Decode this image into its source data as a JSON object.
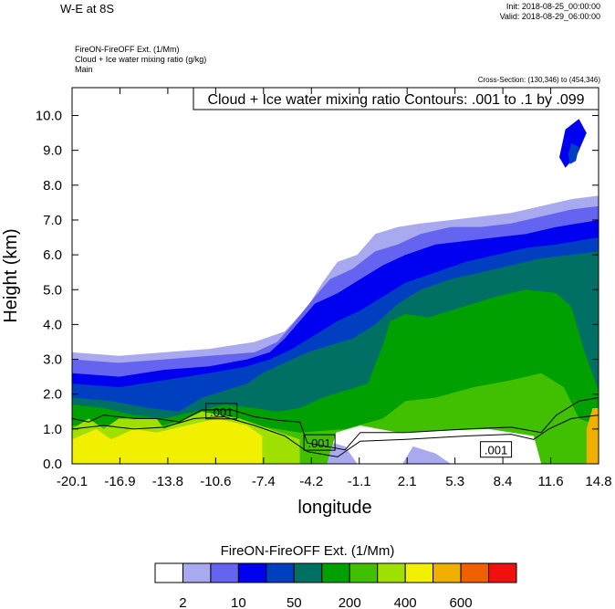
{
  "header": {
    "title": "W-E at 8S",
    "init": "Init: 2018-08-25_00:00:00",
    "valid": "Valid: 2018-08-29_06:00:00",
    "subtitle1": "FireON-FireOFF Ext.   (1/Mm)",
    "subtitle2": "Cloud + Ice water mixing ratio   (g/kg)",
    "subtitle3": "Main",
    "cross_section": "Cross-Section: (130,346) to (454,346)"
  },
  "colors": {
    "levels": [
      "#ffffff",
      "#a9a9f0",
      "#6464f0",
      "#0000f0",
      "#0040c0",
      "#007064",
      "#00a000",
      "#40c000",
      "#a0e000",
      "#f0f000",
      "#f0b000",
      "#f06000",
      "#f01010"
    ]
  },
  "chart_data": {
    "type": "heatmap",
    "title": "Cloud + Ice water mixing ratio Contours: .001 to .1 by .099",
    "xlabel": "longitude",
    "ylabel": "Height (km)",
    "xlim": [
      -20.1,
      14.8
    ],
    "ylim": [
      0,
      10.8
    ],
    "x_ticks": [
      "-20.1",
      "-16.9",
      "-13.8",
      "-10.6",
      "-7.4",
      "-4.2",
      "-1.1",
      "2.1",
      "5.3",
      "8.4",
      "11.6",
      "14.8"
    ],
    "y_ticks": [
      "0.0",
      "1.0",
      "2.0",
      "3.0",
      "4.0",
      "5.0",
      "6.0",
      "7.0",
      "8.0",
      "9.0",
      "10.0"
    ],
    "contour_labels": [
      {
        "text": ".001",
        "x": -10.2,
        "y": 1.5
      },
      {
        "text": ".001",
        "x": -3.7,
        "y": 0.6
      },
      {
        "text": ".001",
        "x": 8.0,
        "y": 0.4
      }
    ],
    "colorbar": {
      "title": "FireON-FireOFF Ext.  (1/Mm)",
      "labels": [
        "2",
        "10",
        "50",
        "200",
        "400",
        "600"
      ]
    },
    "fields": [
      {
        "level": 1,
        "points": [
          [
            -20.1,
            3.2
          ],
          [
            -17,
            3.1
          ],
          [
            -14,
            3.2
          ],
          [
            -11,
            3.3
          ],
          [
            -8,
            3.5
          ],
          [
            -6,
            3.8
          ],
          [
            -4.5,
            4.5
          ],
          [
            -3.5,
            5.2
          ],
          [
            -2.5,
            5.8
          ],
          [
            -1.2,
            6.0
          ],
          [
            0,
            6.6
          ],
          [
            1.5,
            6.8
          ],
          [
            3,
            6.9
          ],
          [
            5,
            7.0
          ],
          [
            7,
            7.1
          ],
          [
            9,
            7.2
          ],
          [
            11,
            7.4
          ],
          [
            13,
            7.6
          ],
          [
            14.8,
            7.7
          ],
          [
            14.8,
            0
          ],
          [
            -20.1,
            0
          ]
        ]
      },
      {
        "level": 2,
        "points": [
          [
            -20.1,
            3.0
          ],
          [
            -17,
            2.9
          ],
          [
            -14,
            3.0
          ],
          [
            -11,
            3.1
          ],
          [
            -8,
            3.2
          ],
          [
            -6.5,
            3.5
          ],
          [
            -5.5,
            4.0
          ],
          [
            -4,
            4.8
          ],
          [
            -3,
            5.3
          ],
          [
            -1.5,
            5.6
          ],
          [
            0,
            6.1
          ],
          [
            1.5,
            6.3
          ],
          [
            3,
            6.6
          ],
          [
            5,
            6.8
          ],
          [
            7,
            6.8
          ],
          [
            9,
            6.9
          ],
          [
            11,
            7.1
          ],
          [
            13,
            7.3
          ],
          [
            14.8,
            7.4
          ],
          [
            14.8,
            0
          ],
          [
            -20.1,
            0
          ]
        ]
      },
      {
        "level": 3,
        "points": [
          [
            -20.1,
            2.6
          ],
          [
            -17,
            2.5
          ],
          [
            -14,
            2.7
          ],
          [
            -11,
            2.8
          ],
          [
            -8.5,
            3.0
          ],
          [
            -7,
            3.2
          ],
          [
            -6,
            3.6
          ],
          [
            -5,
            4.1
          ],
          [
            -4,
            4.6
          ],
          [
            -2.5,
            4.9
          ],
          [
            -1,
            5.3
          ],
          [
            0.5,
            5.7
          ],
          [
            2,
            6.0
          ],
          [
            4,
            6.3
          ],
          [
            6,
            6.4
          ],
          [
            8,
            6.5
          ],
          [
            10,
            6.6
          ],
          [
            12,
            6.8
          ],
          [
            14.8,
            7.0
          ],
          [
            14.8,
            0
          ],
          [
            -20.1,
            0
          ]
        ]
      },
      {
        "level": 4,
        "points": [
          [
            -20.1,
            2.3
          ],
          [
            -17,
            2.2
          ],
          [
            -14,
            2.4
          ],
          [
            -11,
            2.6
          ],
          [
            -8.5,
            2.8
          ],
          [
            -7,
            3.0
          ],
          [
            -5.5,
            3.3
          ],
          [
            -4,
            3.7
          ],
          [
            -2.5,
            4.1
          ],
          [
            -1,
            4.4
          ],
          [
            0.5,
            4.8
          ],
          [
            2,
            5.2
          ],
          [
            4,
            5.5
          ],
          [
            6,
            5.8
          ],
          [
            8,
            6.0
          ],
          [
            10,
            6.2
          ],
          [
            12,
            6.3
          ],
          [
            14.8,
            6.5
          ],
          [
            14.8,
            0
          ],
          [
            -20.1,
            0
          ]
        ]
      },
      {
        "level": 5,
        "points": [
          [
            -20.1,
            1.9
          ],
          [
            -17.5,
            1.8
          ],
          [
            -15,
            1.6
          ],
          [
            -13,
            1.5
          ],
          [
            -11.5,
            1.9
          ],
          [
            -10,
            2.1
          ],
          [
            -8.5,
            2.3
          ],
          [
            -7.5,
            2.6
          ],
          [
            -6,
            2.9
          ],
          [
            -4.5,
            3.2
          ],
          [
            -3,
            3.4
          ],
          [
            -1.5,
            3.6
          ],
          [
            0,
            4.0
          ],
          [
            1.5,
            4.6
          ],
          [
            3,
            5.0
          ],
          [
            5,
            5.3
          ],
          [
            7,
            5.5
          ],
          [
            9,
            5.7
          ],
          [
            11,
            5.9
          ],
          [
            13,
            6.0
          ],
          [
            14.8,
            6.1
          ],
          [
            14.8,
            0
          ],
          [
            -20.1,
            0
          ]
        ]
      },
      {
        "level": 6,
        "points": [
          [
            -20.1,
            1.7
          ],
          [
            -18,
            1.6
          ],
          [
            -16,
            1.4
          ],
          [
            -14,
            1.3
          ],
          [
            -12,
            1.5
          ],
          [
            -10,
            1.7
          ],
          [
            -8,
            1.6
          ],
          [
            -6.5,
            1.5
          ],
          [
            -5,
            1.6
          ],
          [
            -3.5,
            1.9
          ],
          [
            -2,
            2.1
          ],
          [
            -0.5,
            2.3
          ],
          [
            0.5,
            3.4
          ],
          [
            1,
            4.1
          ],
          [
            2,
            4.3
          ],
          [
            3.5,
            4.2
          ],
          [
            5,
            4.4
          ],
          [
            6.5,
            4.6
          ],
          [
            8,
            4.8
          ],
          [
            10,
            5.0
          ],
          [
            12,
            4.9
          ],
          [
            13,
            4.5
          ],
          [
            13.8,
            3.3
          ],
          [
            14.8,
            2.1
          ],
          [
            14.8,
            0
          ],
          [
            -20.1,
            0
          ]
        ]
      },
      {
        "level": 7,
        "points": [
          [
            -20.1,
            1.1
          ],
          [
            -14,
            1.1
          ],
          [
            -12.5,
            1.3
          ],
          [
            -10.5,
            1.4
          ],
          [
            -8,
            1.1
          ],
          [
            -5,
            0.9
          ],
          [
            -2,
            1.0
          ],
          [
            0.5,
            1.3
          ],
          [
            2,
            1.8
          ],
          [
            4,
            1.9
          ],
          [
            6.5,
            2.2
          ],
          [
            9,
            2.4
          ],
          [
            11,
            2.6
          ],
          [
            12.5,
            2.2
          ],
          [
            13.5,
            1.3
          ],
          [
            14.8,
            1.1
          ],
          [
            14.8,
            0
          ],
          [
            -20.1,
            0
          ]
        ]
      },
      {
        "level": 8,
        "points": [
          [
            -20.1,
            1.0
          ],
          [
            -19,
            1.3
          ],
          [
            -18,
            1.0
          ],
          [
            -17,
            1.3
          ],
          [
            -14.5,
            1.3
          ],
          [
            -14,
            1.0
          ],
          [
            -12.5,
            1.3
          ],
          [
            -11.5,
            1.5
          ],
          [
            -9,
            1.3
          ],
          [
            -7,
            1.0
          ],
          [
            -5,
            0.7
          ],
          [
            -5,
            0
          ],
          [
            -20.1,
            0
          ]
        ]
      },
      {
        "level": 9,
        "points": [
          [
            -20.1,
            0.7
          ],
          [
            -18.5,
            1.0
          ],
          [
            -17.5,
            0.7
          ],
          [
            -16,
            1.0
          ],
          [
            -14.5,
            0.9
          ],
          [
            -12.5,
            1.1
          ],
          [
            -10.5,
            1.3
          ],
          [
            -8.5,
            1.1
          ],
          [
            -7.5,
            0.8
          ],
          [
            -7.5,
            0
          ],
          [
            -20.1,
            0
          ]
        ]
      },
      {
        "level": 10,
        "points": [
          [
            14.0,
            0
          ],
          [
            14.0,
            1.0
          ],
          [
            14.4,
            1.6
          ],
          [
            14.8,
            1.6
          ],
          [
            14.8,
            0
          ]
        ]
      },
      {
        "level": 0,
        "points": [
          [
            -3.2,
            0
          ],
          [
            -2.6,
            0.9
          ],
          [
            -1.0,
            1.1
          ],
          [
            1.5,
            0.9
          ],
          [
            4.5,
            0.95
          ],
          [
            7.5,
            1.0
          ],
          [
            10.5,
            0.8
          ],
          [
            11.0,
            0
          ],
          [
            -3.2,
            0
          ]
        ]
      },
      {
        "level": 1,
        "points": [
          [
            -3.2,
            0
          ],
          [
            -2.8,
            0.6
          ],
          [
            -2.0,
            0.5
          ],
          [
            -1.2,
            0
          ],
          [
            -3.2,
            0
          ]
        ]
      },
      {
        "level": 1,
        "points": [
          [
            1.8,
            0
          ],
          [
            2.5,
            0.5
          ],
          [
            4.0,
            0.3
          ],
          [
            5.0,
            0
          ],
          [
            1.8,
            0
          ]
        ]
      },
      {
        "level": 3,
        "points": [
          [
            12.2,
            8.8
          ],
          [
            12.6,
            9.6
          ],
          [
            13.5,
            9.9
          ],
          [
            14.0,
            9.5
          ],
          [
            13.4,
            8.9
          ],
          [
            12.6,
            8.5
          ]
        ]
      },
      {
        "level": 4,
        "points": [
          [
            12.8,
            8.9
          ],
          [
            13.0,
            9.2
          ],
          [
            13.5,
            9.1
          ],
          [
            13.3,
            8.7
          ],
          [
            12.9,
            8.6
          ]
        ]
      }
    ],
    "contours": [
      [
        [
          -20.1,
          1.3
        ],
        [
          -19,
          1.2
        ],
        [
          -18,
          1.4
        ],
        [
          -16,
          1.3
        ],
        [
          -14.5,
          1.3
        ],
        [
          -13,
          1.2
        ],
        [
          -11.5,
          1.55
        ],
        [
          -9.5,
          1.55
        ],
        [
          -8,
          1.35
        ],
        [
          -6.5,
          1.25
        ],
        [
          -5,
          1.2
        ],
        [
          -4.5,
          0.6
        ],
        [
          -2,
          0.4
        ],
        [
          -1,
          0.9
        ],
        [
          2,
          0.9
        ],
        [
          6,
          1.0
        ],
        [
          9,
          1.05
        ],
        [
          11,
          0.9
        ],
        [
          12,
          1.4
        ],
        [
          13.5,
          1.8
        ],
        [
          14.8,
          1.9
        ]
      ],
      [
        [
          -20.1,
          1.0
        ],
        [
          -18,
          1.1
        ],
        [
          -16,
          1.0
        ],
        [
          -14,
          1.05
        ],
        [
          -12,
          1.3
        ],
        [
          -10,
          1.35
        ],
        [
          -8,
          1.1
        ],
        [
          -6,
          0.8
        ],
        [
          -4.5,
          0.35
        ],
        [
          -2.5,
          0.2
        ],
        [
          -1,
          0.65
        ],
        [
          2,
          0.7
        ],
        [
          6,
          0.8
        ],
        [
          9,
          0.85
        ],
        [
          10.5,
          0.7
        ],
        [
          11.5,
          1.0
        ],
        [
          13,
          1.3
        ],
        [
          14.8,
          1.4
        ]
      ]
    ]
  }
}
